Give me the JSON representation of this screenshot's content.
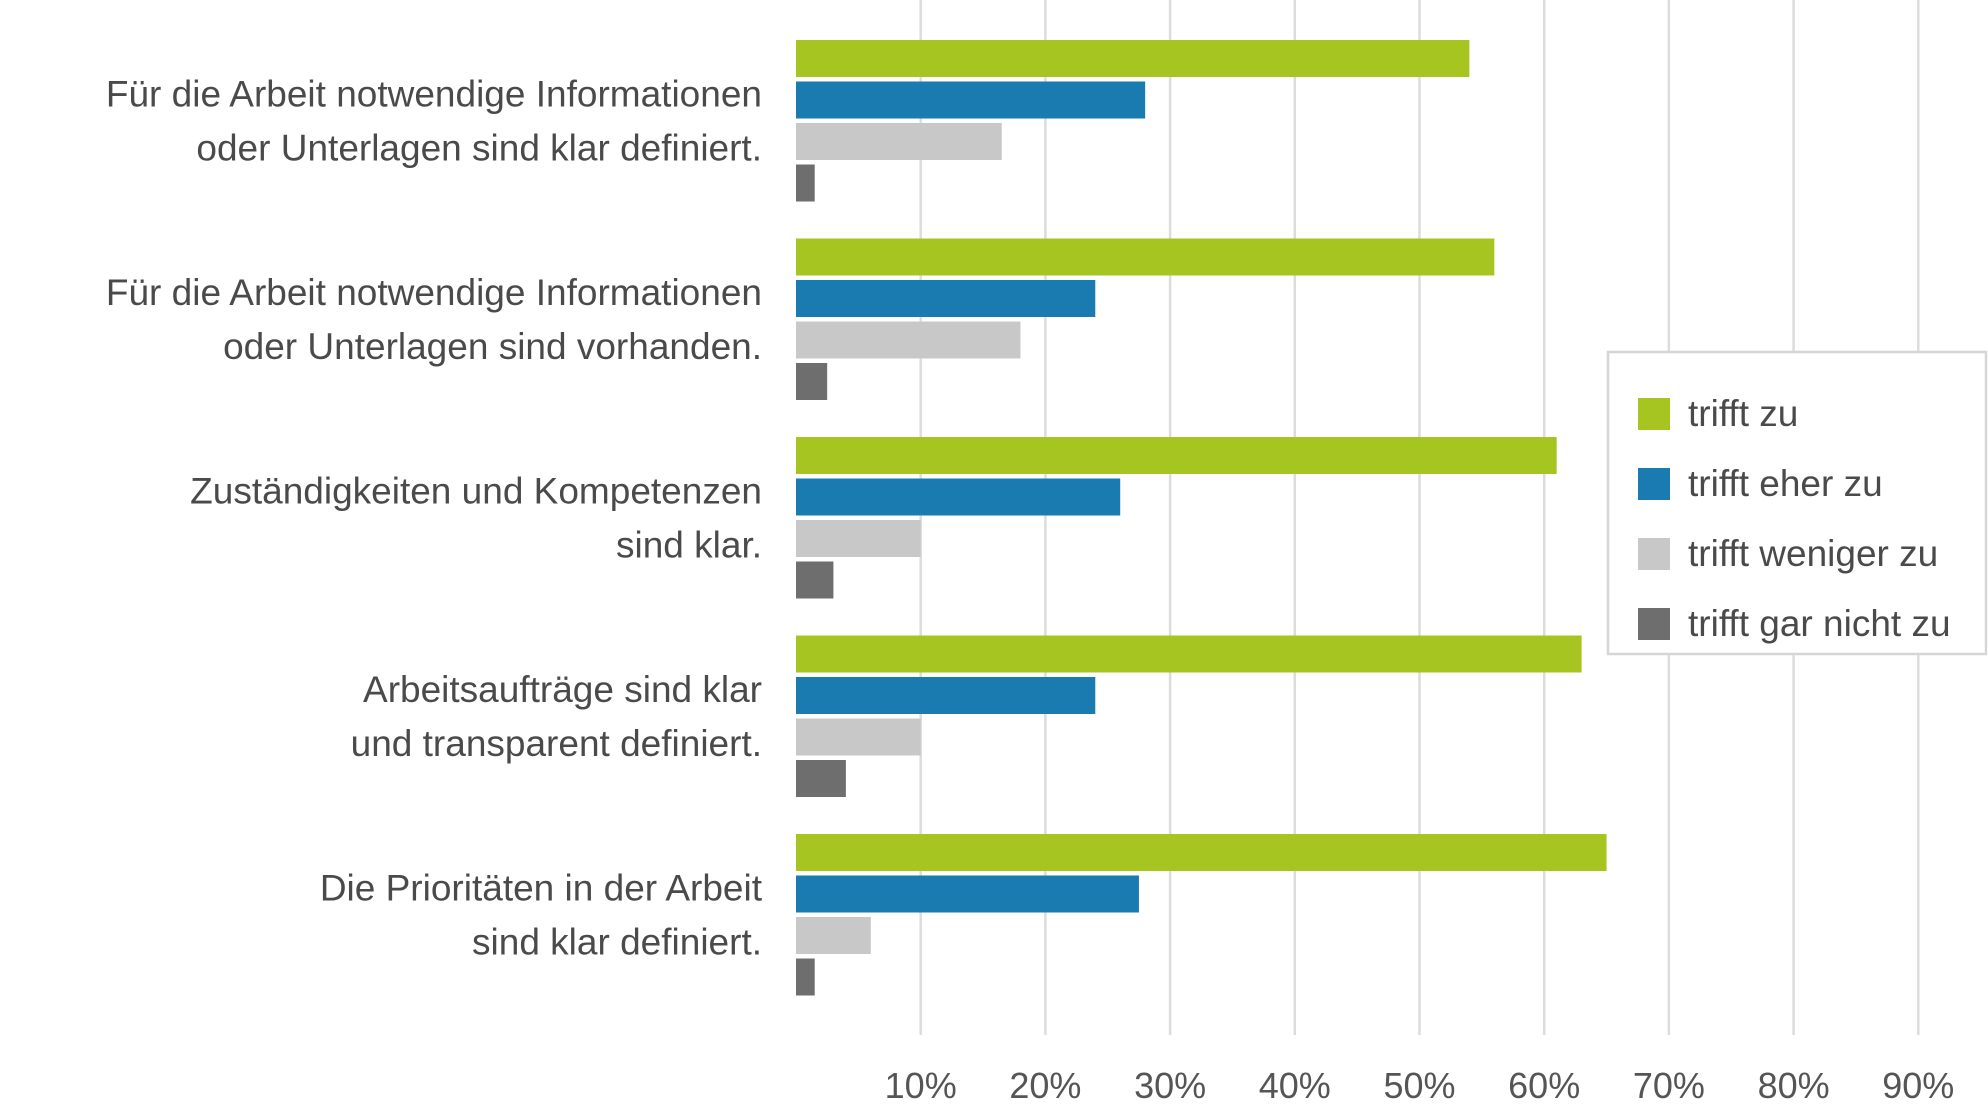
{
  "chart_data": {
    "type": "bar",
    "orientation": "horizontal",
    "title": "",
    "xlabel": "",
    "ylabel": "",
    "xlim": [
      0,
      90
    ],
    "grid": true,
    "legend_position": "right",
    "tick_values": [
      10,
      20,
      30,
      40,
      50,
      60,
      70,
      80,
      90
    ],
    "tick_labels": [
      "10%",
      "20%",
      "30%",
      "40%",
      "50%",
      "60%",
      "70%",
      "80%",
      "90%"
    ],
    "categories": [
      [
        "Für die Arbeit notwendige Informationen",
        "oder Unterlagen sind klar definiert."
      ],
      [
        "Für die Arbeit notwendige Informationen",
        "oder Unterlagen sind vorhanden."
      ],
      [
        "Zuständigkeiten und Kompetenzen",
        "sind klar."
      ],
      [
        "Arbeitsaufträge sind klar",
        "und transparent definiert."
      ],
      [
        "Die Prioritäten in der Arbeit",
        "sind klar definiert."
      ]
    ],
    "series": [
      {
        "name": "trifft zu",
        "color": "#a7c520",
        "values": [
          54,
          56,
          61,
          63,
          65
        ]
      },
      {
        "name": "trifft eher zu",
        "color": "#1a7bb0",
        "values": [
          28,
          24,
          26,
          24,
          27.5
        ]
      },
      {
        "name": "trifft weniger zu",
        "color": "#c8c8c8",
        "values": [
          16.5,
          18,
          10,
          10,
          6
        ]
      },
      {
        "name": "trifft gar nicht zu",
        "color": "#6e6e6e",
        "values": [
          1.5,
          2.5,
          3,
          4,
          1.5
        ]
      }
    ]
  }
}
